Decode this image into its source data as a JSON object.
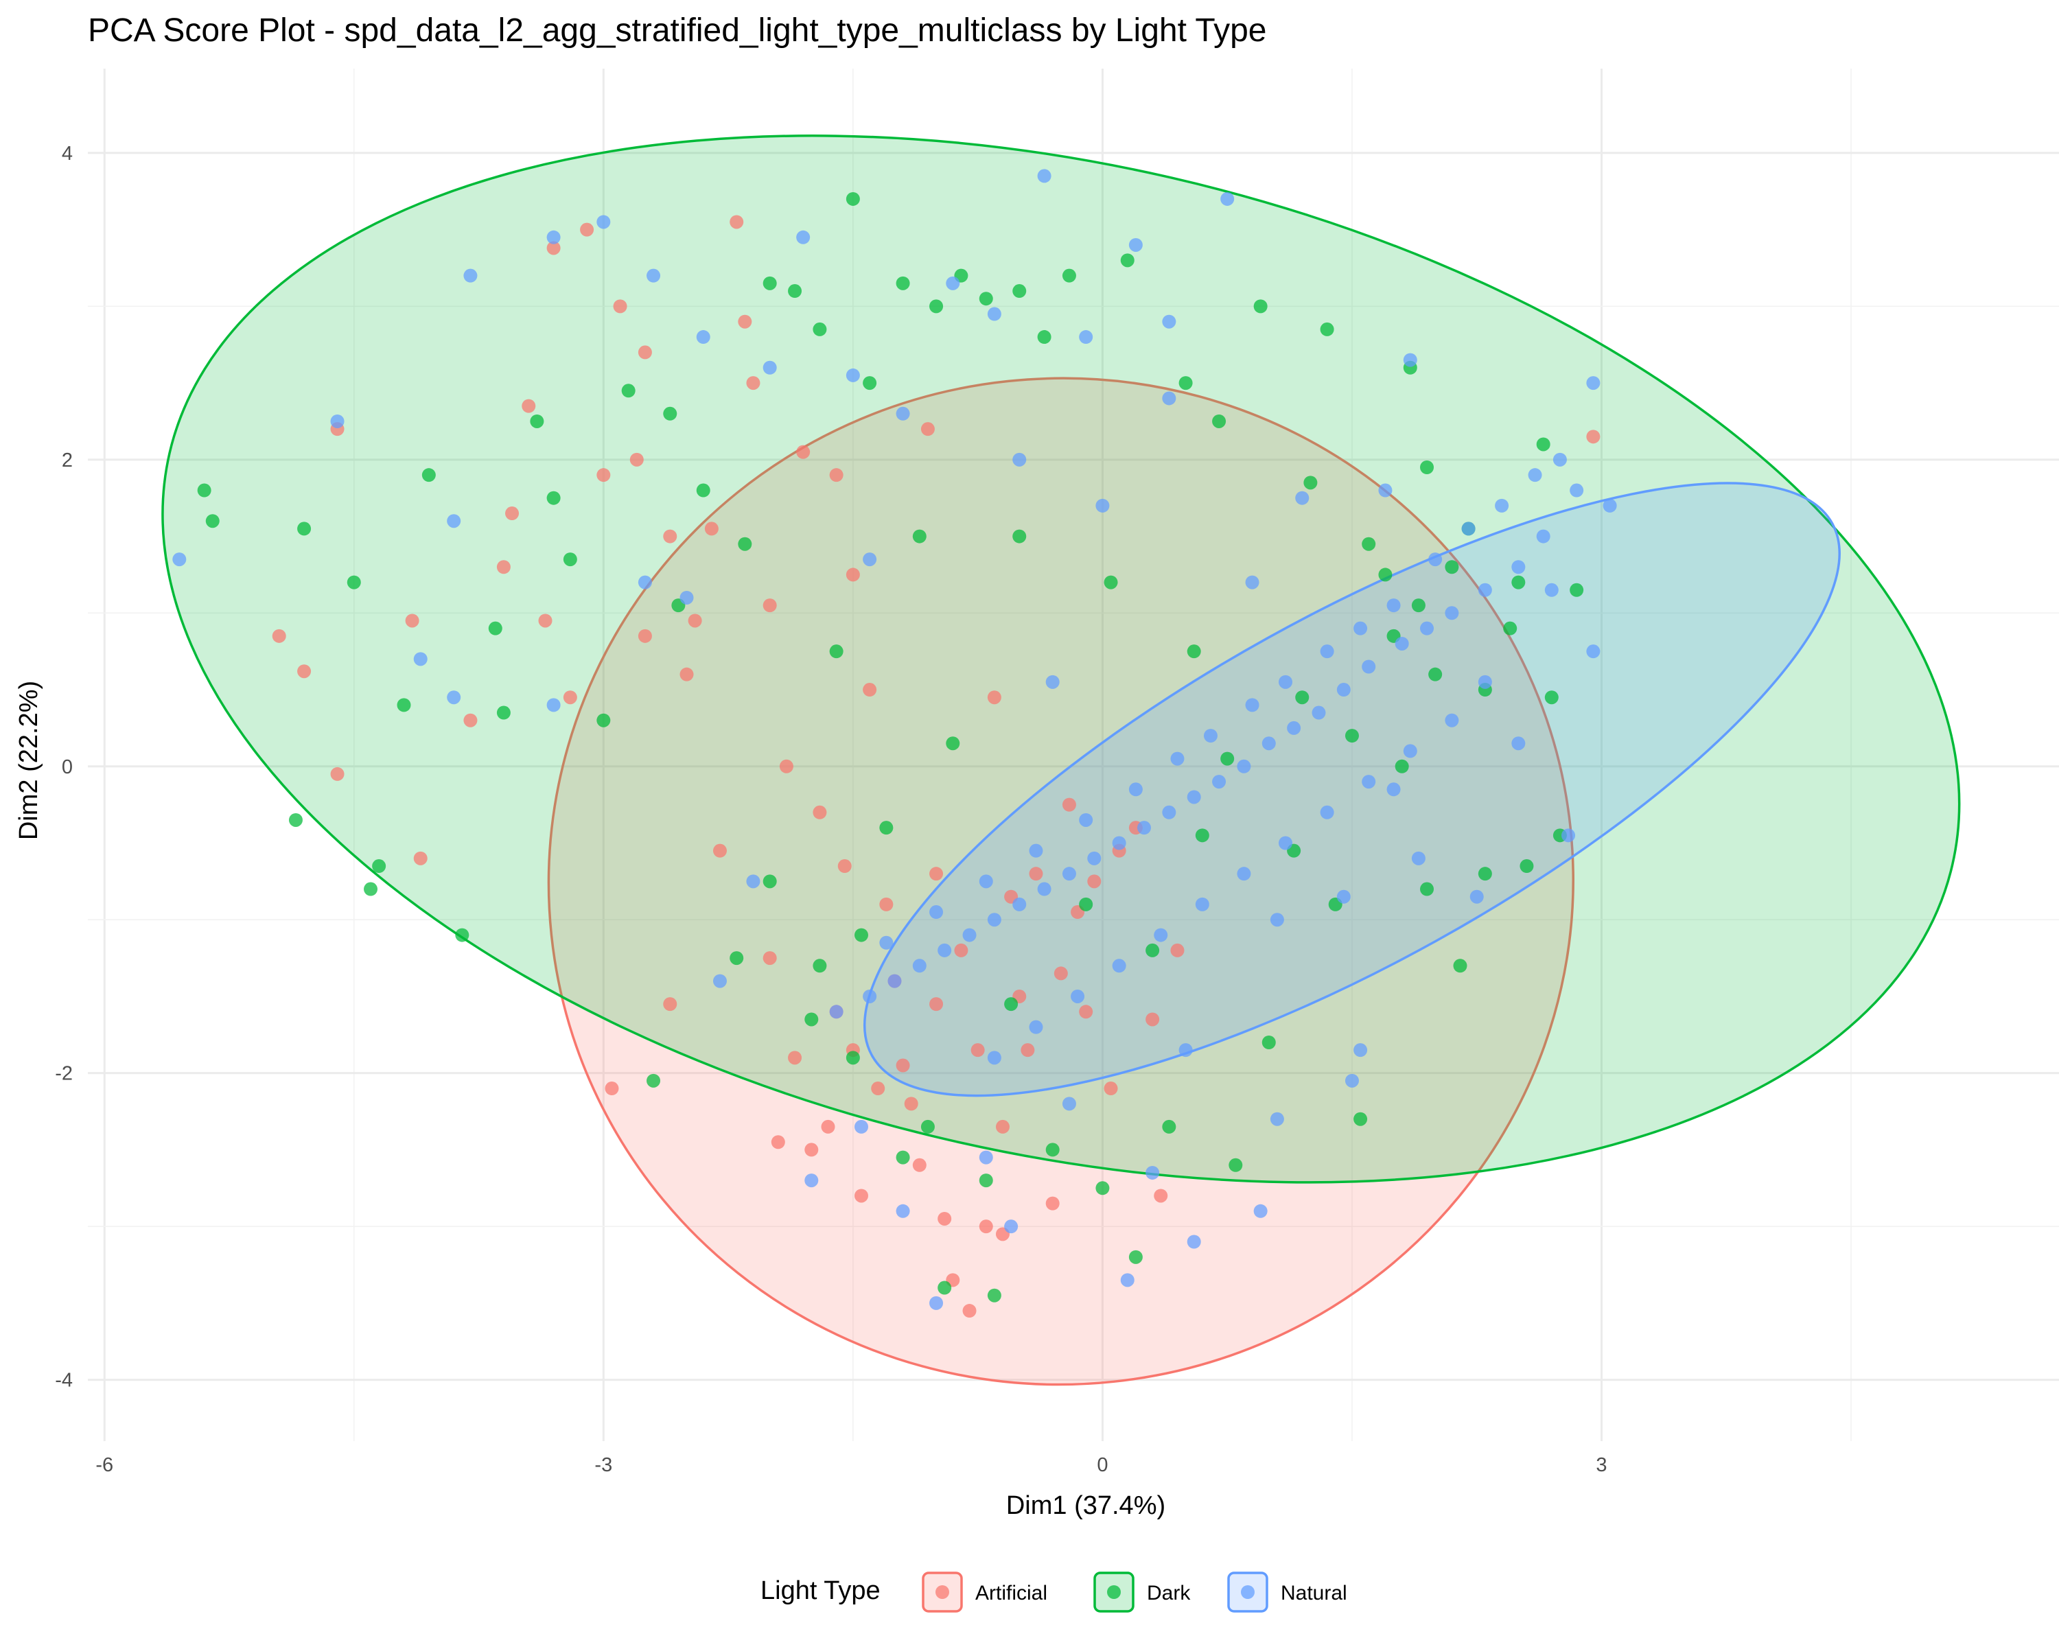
{
  "chart_data": {
    "type": "scatter",
    "title": "PCA Score Plot - spd_data_l2_agg_stratified_light_type_multiclass by Light Type",
    "xlabel": "Dim1 (37.4%)",
    "ylabel": "Dim2 (22.2%)",
    "xlim": [
      -6.1,
      5.75
    ],
    "ylim": [
      -4.4,
      4.55
    ],
    "x_ticks": [
      -6,
      -3,
      0,
      3
    ],
    "x_tick_labels": [
      "-6",
      "-3",
      "0",
      "3"
    ],
    "y_ticks": [
      -4,
      -2,
      0,
      2,
      4
    ],
    "y_tick_labels": [
      "-4",
      "-2",
      "0",
      "2",
      "4"
    ],
    "grid": true,
    "legend": {
      "title": "Light Type",
      "position": "bottom",
      "entries": [
        "Artificial",
        "Dark",
        "Natural"
      ]
    },
    "series": [
      {
        "name": "Artificial",
        "color": "#F8766D",
        "ellipse": {
          "center": [
            -0.25,
            -0.75
          ],
          "rx": 3.08,
          "ry": 3.28,
          "angle_deg": 6
        },
        "points": [
          [
            -4.95,
            0.85
          ],
          [
            -4.8,
            0.62
          ],
          [
            -4.6,
            2.2
          ],
          [
            -4.6,
            -0.05
          ],
          [
            -4.1,
            -0.6
          ],
          [
            -3.8,
            0.3
          ],
          [
            -3.6,
            1.3
          ],
          [
            -3.45,
            2.35
          ],
          [
            -3.3,
            3.38
          ],
          [
            -3.1,
            3.5
          ],
          [
            -3.0,
            1.9
          ],
          [
            -2.9,
            3.0
          ],
          [
            -2.8,
            2.0
          ],
          [
            -2.75,
            0.85
          ],
          [
            -2.6,
            1.5
          ],
          [
            -2.5,
            0.6
          ],
          [
            -2.35,
            1.55
          ],
          [
            -2.2,
            3.55
          ],
          [
            -2.1,
            2.5
          ],
          [
            -2.0,
            1.05
          ],
          [
            -1.9,
            0.0
          ],
          [
            -1.8,
            2.05
          ],
          [
            -1.7,
            -0.3
          ],
          [
            -1.6,
            -1.6
          ],
          [
            -1.5,
            1.25
          ],
          [
            -1.4,
            0.5
          ],
          [
            -1.3,
            -0.9
          ],
          [
            -1.2,
            -1.95
          ],
          [
            -1.15,
            -2.2
          ],
          [
            -1.1,
            -2.6
          ],
          [
            -1.0,
            -0.7
          ],
          [
            -0.95,
            -2.95
          ],
          [
            -0.9,
            -3.35
          ],
          [
            -0.85,
            -1.2
          ],
          [
            -0.8,
            -3.55
          ],
          [
            -0.7,
            -3.0
          ],
          [
            -0.6,
            -2.35
          ],
          [
            -0.5,
            -1.5
          ],
          [
            -0.4,
            -0.7
          ],
          [
            -0.3,
            -2.85
          ],
          [
            -0.2,
            -0.25
          ],
          [
            -0.1,
            -1.6
          ],
          [
            0.05,
            -2.1
          ],
          [
            0.2,
            -0.4
          ],
          [
            0.35,
            -2.8
          ],
          [
            0.45,
            -1.2
          ],
          [
            -1.75,
            -2.5
          ],
          [
            -1.45,
            -2.8
          ],
          [
            -2.0,
            -1.25
          ],
          [
            -2.3,
            -0.55
          ],
          [
            -2.6,
            -1.55
          ],
          [
            -2.95,
            -2.1
          ],
          [
            -1.85,
            -1.9
          ],
          [
            -1.65,
            -2.35
          ],
          [
            -1.35,
            -2.1
          ],
          [
            -0.75,
            -1.85
          ],
          [
            -1.25,
            -1.4
          ],
          [
            -1.55,
            -0.65
          ],
          [
            -0.55,
            -0.85
          ],
          [
            -0.15,
            -0.95
          ],
          [
            0.1,
            -0.55
          ],
          [
            -2.45,
            0.95
          ],
          [
            -3.2,
            0.45
          ],
          [
            -3.55,
            1.65
          ],
          [
            -4.15,
            0.95
          ],
          [
            -1.05,
            2.2
          ],
          [
            -2.15,
            2.9
          ],
          [
            -0.65,
            0.45
          ],
          [
            -1.95,
            -2.45
          ],
          [
            -1.5,
            -1.85
          ],
          [
            -1.0,
            -1.55
          ],
          [
            -0.45,
            -1.85
          ],
          [
            -0.25,
            -1.35
          ],
          [
            -0.05,
            -0.75
          ],
          [
            0.3,
            -1.65
          ],
          [
            -2.75,
            2.7
          ],
          [
            -3.35,
            0.95
          ],
          [
            -1.6,
            1.9
          ],
          [
            2.95,
            2.15
          ],
          [
            -0.6,
            -3.05
          ]
        ]
      },
      {
        "name": "Dark",
        "color": "#00BA38",
        "ellipse": {
          "center": [
            -0.25,
            0.7
          ],
          "rx": 5.5,
          "ry": 3.22,
          "angle_deg": -13
        },
        "points": [
          [
            -5.4,
            1.8
          ],
          [
            -5.35,
            1.6
          ],
          [
            -4.8,
            1.55
          ],
          [
            -4.5,
            1.2
          ],
          [
            -4.2,
            0.4
          ],
          [
            -4.05,
            1.9
          ],
          [
            -3.85,
            -1.1
          ],
          [
            -3.6,
            0.35
          ],
          [
            -3.4,
            2.25
          ],
          [
            -3.3,
            1.75
          ],
          [
            -3.2,
            1.35
          ],
          [
            -3.0,
            0.3
          ],
          [
            -2.85,
            2.45
          ],
          [
            -2.6,
            2.3
          ],
          [
            -2.4,
            1.8
          ],
          [
            -2.15,
            1.45
          ],
          [
            -2.0,
            3.15
          ],
          [
            -1.85,
            3.1
          ],
          [
            -1.7,
            2.85
          ],
          [
            -1.5,
            3.7
          ],
          [
            -1.4,
            2.5
          ],
          [
            -1.2,
            3.15
          ],
          [
            -1.0,
            3.0
          ],
          [
            -0.85,
            3.2
          ],
          [
            -0.7,
            3.05
          ],
          [
            -0.5,
            3.1
          ],
          [
            -0.35,
            2.8
          ],
          [
            -0.2,
            3.2
          ],
          [
            0.15,
            3.3
          ],
          [
            0.5,
            2.5
          ],
          [
            0.7,
            2.25
          ],
          [
            0.95,
            3.0
          ],
          [
            1.25,
            1.85
          ],
          [
            1.35,
            2.85
          ],
          [
            1.6,
            1.45
          ],
          [
            1.85,
            2.6
          ],
          [
            1.95,
            1.95
          ],
          [
            2.1,
            1.3
          ],
          [
            2.3,
            0.5
          ],
          [
            2.5,
            1.2
          ],
          [
            2.65,
            2.1
          ],
          [
            2.85,
            1.15
          ],
          [
            2.7,
            0.45
          ],
          [
            2.75,
            -0.45
          ],
          [
            2.3,
            -0.7
          ],
          [
            1.95,
            -0.8
          ],
          [
            1.4,
            -0.9
          ],
          [
            2.15,
            -1.3
          ],
          [
            1.55,
            -2.3
          ],
          [
            1.0,
            -1.8
          ],
          [
            0.8,
            -2.6
          ],
          [
            0.4,
            -2.35
          ],
          [
            0.0,
            -2.75
          ],
          [
            -0.3,
            -2.5
          ],
          [
            -0.7,
            -2.7
          ],
          [
            -0.95,
            -3.4
          ],
          [
            -1.2,
            -2.55
          ],
          [
            -1.5,
            -1.9
          ],
          [
            -1.7,
            -1.3
          ],
          [
            -2.0,
            -0.75
          ],
          [
            -2.2,
            -1.25
          ],
          [
            -2.7,
            -2.05
          ],
          [
            -1.3,
            -0.4
          ],
          [
            -0.9,
            0.15
          ],
          [
            -0.55,
            -1.55
          ],
          [
            -0.1,
            -0.9
          ],
          [
            0.3,
            -1.2
          ],
          [
            0.6,
            -0.45
          ],
          [
            1.15,
            -0.55
          ],
          [
            1.5,
            0.2
          ],
          [
            1.75,
            0.85
          ],
          [
            1.9,
            1.05
          ],
          [
            2.0,
            0.6
          ],
          [
            2.2,
            1.55
          ],
          [
            1.7,
            1.25
          ],
          [
            1.2,
            0.45
          ],
          [
            0.75,
            0.05
          ],
          [
            -4.85,
            -0.35
          ],
          [
            -4.4,
            -0.8
          ],
          [
            -1.75,
            -1.65
          ],
          [
            -1.45,
            -1.1
          ],
          [
            -1.05,
            -2.35
          ],
          [
            -0.65,
            -3.45
          ],
          [
            0.2,
            -3.2
          ],
          [
            -0.5,
            1.5
          ],
          [
            -1.1,
            1.5
          ],
          [
            -2.55,
            1.05
          ],
          [
            -3.65,
            0.9
          ],
          [
            -4.35,
            -0.65
          ],
          [
            2.55,
            -0.65
          ],
          [
            -1.6,
            0.75
          ],
          [
            0.05,
            1.2
          ],
          [
            0.55,
            0.75
          ],
          [
            1.8,
            0.0
          ],
          [
            2.45,
            0.9
          ]
        ]
      },
      {
        "name": "Natural",
        "color": "#619CFF",
        "ellipse": {
          "center": [
            1.5,
            -0.15
          ],
          "rx": 3.3,
          "ry": 1.13,
          "angle_deg": 29
        },
        "points": [
          [
            -5.55,
            1.35
          ],
          [
            -4.6,
            2.25
          ],
          [
            -3.8,
            3.2
          ],
          [
            -3.3,
            3.45
          ],
          [
            -3.0,
            3.55
          ],
          [
            -2.7,
            3.2
          ],
          [
            -2.4,
            2.8
          ],
          [
            -2.0,
            2.6
          ],
          [
            -1.8,
            3.45
          ],
          [
            -1.5,
            2.55
          ],
          [
            -1.2,
            2.3
          ],
          [
            -0.9,
            3.15
          ],
          [
            -0.65,
            2.95
          ],
          [
            -0.35,
            3.85
          ],
          [
            -0.1,
            2.8
          ],
          [
            0.2,
            3.4
          ],
          [
            0.4,
            2.9
          ],
          [
            0.75,
            3.7
          ],
          [
            0.4,
            2.4
          ],
          [
            0.0,
            1.7
          ],
          [
            -0.5,
            2.0
          ],
          [
            1.85,
            2.65
          ],
          [
            2.95,
            2.5
          ],
          [
            3.05,
            1.7
          ],
          [
            2.85,
            1.8
          ],
          [
            2.65,
            1.5
          ],
          [
            2.5,
            1.3
          ],
          [
            2.3,
            1.15
          ],
          [
            2.1,
            1.0
          ],
          [
            1.95,
            0.9
          ],
          [
            1.8,
            0.8
          ],
          [
            1.6,
            0.65
          ],
          [
            1.45,
            0.5
          ],
          [
            1.3,
            0.35
          ],
          [
            1.15,
            0.25
          ],
          [
            1.0,
            0.15
          ],
          [
            0.85,
            0.0
          ],
          [
            0.7,
            -0.1
          ],
          [
            0.55,
            -0.2
          ],
          [
            0.4,
            -0.3
          ],
          [
            0.25,
            -0.4
          ],
          [
            0.1,
            -0.5
          ],
          [
            -0.05,
            -0.6
          ],
          [
            -0.2,
            -0.7
          ],
          [
            -0.35,
            -0.8
          ],
          [
            -0.5,
            -0.9
          ],
          [
            -0.65,
            -1.0
          ],
          [
            -0.8,
            -1.1
          ],
          [
            -0.95,
            -1.2
          ],
          [
            -1.1,
            -1.3
          ],
          [
            -1.25,
            -1.4
          ],
          [
            -1.4,
            -1.5
          ],
          [
            -1.6,
            -1.6
          ],
          [
            2.2,
            1.55
          ],
          [
            2.4,
            1.7
          ],
          [
            2.6,
            1.9
          ],
          [
            2.75,
            2.0
          ],
          [
            2.0,
            1.35
          ],
          [
            1.75,
            1.05
          ],
          [
            1.55,
            0.9
          ],
          [
            1.35,
            0.75
          ],
          [
            1.1,
            0.55
          ],
          [
            0.9,
            0.4
          ],
          [
            0.65,
            0.2
          ],
          [
            0.45,
            0.05
          ],
          [
            0.2,
            -0.15
          ],
          [
            -0.1,
            -0.35
          ],
          [
            -0.4,
            -0.55
          ],
          [
            -0.7,
            -0.75
          ],
          [
            -1.0,
            -0.95
          ],
          [
            -1.3,
            -1.15
          ],
          [
            2.3,
            0.55
          ],
          [
            2.1,
            0.3
          ],
          [
            1.85,
            0.1
          ],
          [
            1.6,
            -0.1
          ],
          [
            1.35,
            -0.3
          ],
          [
            1.1,
            -0.5
          ],
          [
            0.85,
            -0.7
          ],
          [
            0.6,
            -0.9
          ],
          [
            0.35,
            -1.1
          ],
          [
            0.1,
            -1.3
          ],
          [
            -0.15,
            -1.5
          ],
          [
            -0.4,
            -1.7
          ],
          [
            -0.65,
            -1.9
          ],
          [
            1.55,
            -1.85
          ],
          [
            1.5,
            -2.05
          ],
          [
            1.05,
            -2.3
          ],
          [
            0.3,
            -2.65
          ],
          [
            0.15,
            -3.35
          ],
          [
            -0.55,
            -3.0
          ],
          [
            -1.0,
            -3.5
          ],
          [
            -1.45,
            -2.35
          ],
          [
            -1.75,
            -2.7
          ],
          [
            -1.2,
            -2.9
          ],
          [
            -0.7,
            -2.55
          ],
          [
            -2.1,
            -0.75
          ],
          [
            -2.3,
            -1.4
          ],
          [
            -3.3,
            0.4
          ],
          [
            -3.9,
            0.45
          ],
          [
            -4.1,
            0.7
          ],
          [
            -3.9,
            1.6
          ],
          [
            -2.75,
            1.2
          ],
          [
            -2.5,
            1.1
          ],
          [
            -1.4,
            1.35
          ],
          [
            -0.3,
            0.55
          ],
          [
            0.9,
            1.2
          ],
          [
            1.2,
            1.75
          ],
          [
            2.8,
            -0.45
          ],
          [
            2.25,
            -0.85
          ],
          [
            1.45,
            -0.85
          ],
          [
            1.9,
            -0.6
          ],
          [
            2.5,
            0.15
          ],
          [
            2.95,
            0.75
          ],
          [
            2.7,
            1.15
          ],
          [
            1.7,
            1.8
          ],
          [
            0.55,
            -3.1
          ],
          [
            0.5,
            -1.85
          ],
          [
            -0.2,
            -2.2
          ],
          [
            0.95,
            -2.9
          ],
          [
            1.05,
            -1.0
          ],
          [
            1.75,
            -0.15
          ]
        ]
      }
    ]
  }
}
